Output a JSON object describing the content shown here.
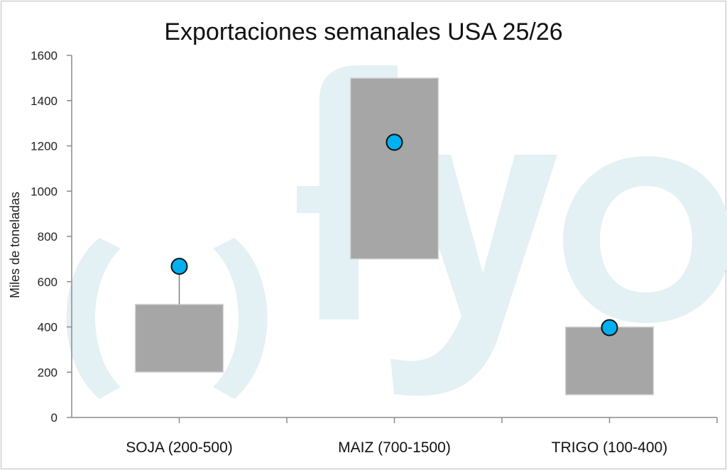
{
  "chart_data": {
    "type": "floating-bar",
    "title": "Exportaciones semanales USA 25/26",
    "xlabel": "",
    "ylabel": "Miles de toneladas",
    "ylim": [
      0,
      1600
    ],
    "yticks": [
      0,
      200,
      400,
      600,
      800,
      1000,
      1200,
      1400,
      1600
    ],
    "categories": [
      "SOJA (200-500)",
      "MAIZ (700-1500)",
      "TRIGO (100-400)"
    ],
    "series": [
      {
        "type": "range-bar",
        "ranges": [
          [
            200,
            500
          ],
          [
            700,
            1500
          ],
          [
            100,
            400
          ]
        ]
      },
      {
        "type": "point",
        "values": [
          668,
          1216,
          397
        ]
      }
    ],
    "grid": false,
    "legend": "none",
    "colors": {
      "range_bar": "#a6a6a6",
      "range_bar_border": "#d9d9d9",
      "point_fill": "#00b0f0",
      "point_stroke": "#111111",
      "axis": "#8c8c8c",
      "watermark": "#e3f0f4"
    },
    "watermark": "fyo"
  }
}
